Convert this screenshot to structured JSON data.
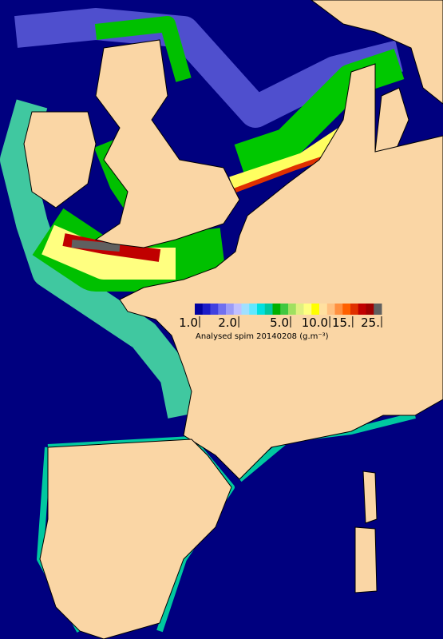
{
  "colorbar": {
    "scale": "log",
    "range": [
      1,
      25
    ],
    "colors": [
      "#0000a0",
      "#1c1cc8",
      "#4040e0",
      "#7070f0",
      "#9c9cf8",
      "#c0c0ff",
      "#a0e0ff",
      "#60e8ff",
      "#00e0e0",
      "#00c8a0",
      "#00b000",
      "#40c840",
      "#a0e060",
      "#e0f080",
      "#ffff80",
      "#ffff00",
      "#ffe0a0",
      "#ffc080",
      "#ff9040",
      "#ff6000",
      "#e03000",
      "#c00000",
      "#a00000",
      "#606060"
    ],
    "ticks": [
      {
        "value": 1,
        "label": "1.0"
      },
      {
        "value": 2,
        "label": "2.0"
      },
      {
        "value": 5,
        "label": "5.0"
      },
      {
        "value": 10,
        "label": "10.0"
      },
      {
        "value": 15,
        "label": "15."
      },
      {
        "value": 25,
        "label": "25."
      }
    ],
    "caption": "Analysed spim 20140208 (g.m⁻³)"
  }
}
